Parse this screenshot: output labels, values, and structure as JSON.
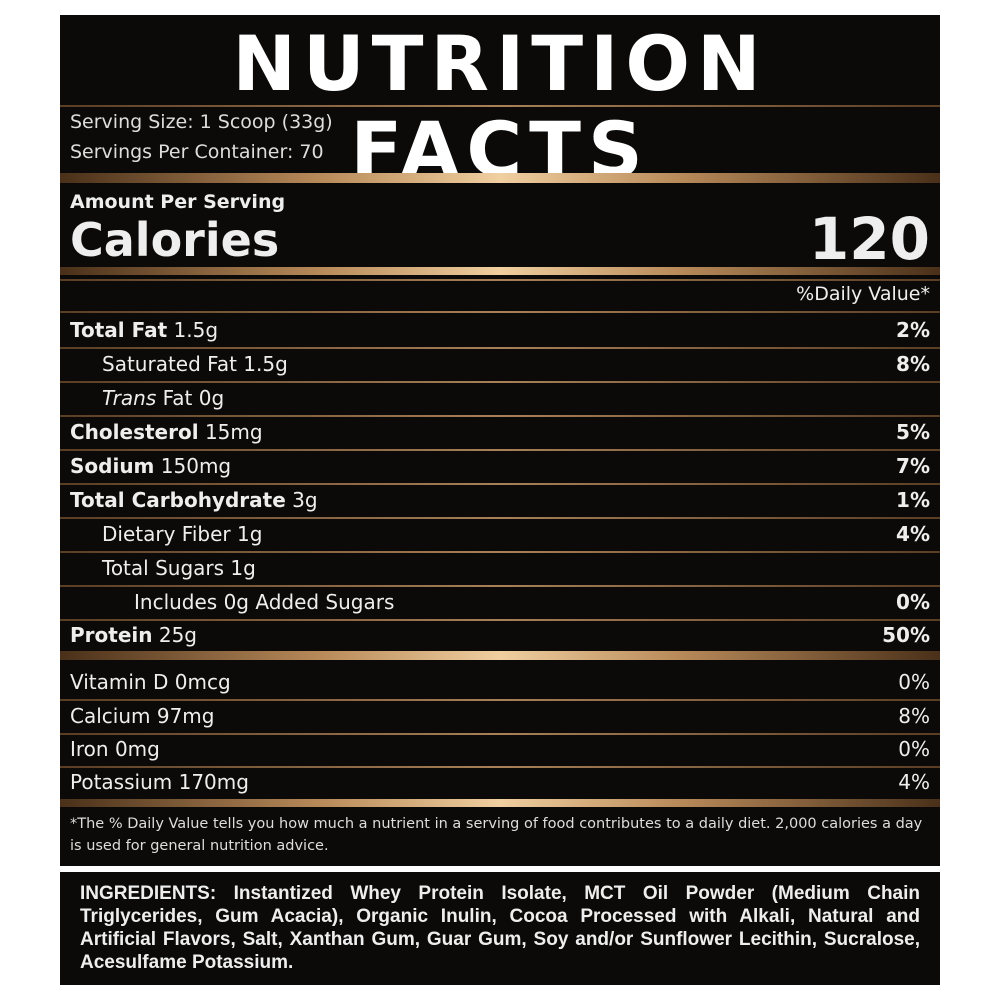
{
  "header": {
    "title": "NUTRITION FACTS"
  },
  "serving": {
    "size": "Serving Size: 1 Scoop (33g)",
    "per_container": "Servings Per Container: 70"
  },
  "calories": {
    "amount_per_serving": "Amount Per Serving",
    "label": "Calories",
    "value": "120"
  },
  "daily_value_header": "%Daily Value*",
  "nutrients": [
    {
      "name": "Total Fat",
      "amount": "1.5g",
      "dv": "2%"
    },
    {
      "name": "Saturated Fat",
      "amount": "1.5g",
      "dv": "8%"
    },
    {
      "name_italic": "Trans",
      "name": "Fat",
      "amount": "0g"
    },
    {
      "name": "Cholesterol",
      "amount": "15mg",
      "dv": "5%"
    },
    {
      "name": "Sodium",
      "amount": "150mg",
      "dv": "7%"
    },
    {
      "name": "Total Carbohydrate",
      "amount": "3g",
      "dv": "1%"
    },
    {
      "name": "Dietary Fiber",
      "amount": "1g",
      "dv": "4%"
    },
    {
      "name": "Total Sugars",
      "amount": "1g"
    },
    {
      "name": "Includes 0g Added Sugars",
      "dv": "0%"
    },
    {
      "name": "Protein",
      "amount": "25g",
      "dv": "50%"
    }
  ],
  "vitamins": [
    {
      "name": "Vitamin D",
      "amount": "0mcg",
      "dv": "0%"
    },
    {
      "name": "Calcium",
      "amount": "97mg",
      "dv": "8%"
    },
    {
      "name": "Iron",
      "amount": "0mg",
      "dv": "0%"
    },
    {
      "name": "Potassium",
      "amount": "170mg",
      "dv": "4%"
    }
  ],
  "footnote": "*The % Daily Value tells you how much a nutrient in a serving of food contributes to a daily diet. 2,000 calories a day is used for general nutrition advice.",
  "ingredients": {
    "label": "INGREDIENTS:",
    "text": "Instantized Whey Protein Isolate, MCT Oil Powder (Medium Chain Triglycerides, Gum Acacia), Organic Inulin, Cocoa Processed with Alkali, Natural and Artificial Flavors, Salt, Xanthan Gum, Guar Gum, Soy and/or Sunflower Lecithin, Sucralose, Acesulfame Potassium."
  }
}
